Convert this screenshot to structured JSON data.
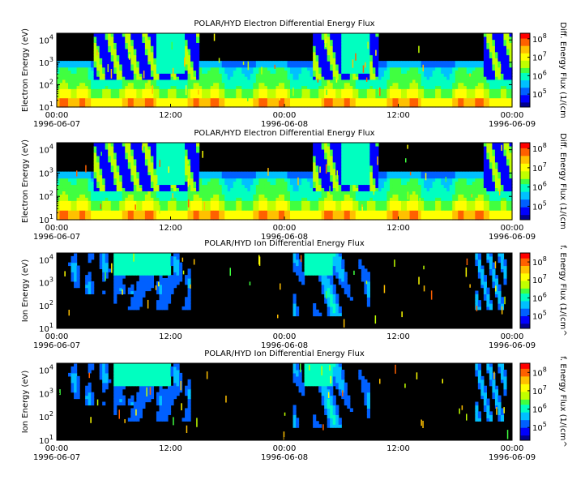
{
  "colors": {
    "background": "#000000",
    "colormap": [
      "#000090",
      "#0000ff",
      "#0060ff",
      "#00c0ff",
      "#00ffc0",
      "#40ff40",
      "#c0ff00",
      "#ffff00",
      "#ffc000",
      "#ff6000",
      "#ff0000"
    ]
  },
  "chart_data": [
    {
      "type": "heatmap",
      "title": "POLAR/HYD  Electron Differential Energy Flux",
      "ylabel": "Electron Energy (eV)",
      "colorbar_label": "Diff. Energy Flux (1/(cm",
      "y_scale": "log",
      "ylim": [
        10,
        20000
      ],
      "y_ticks": [
        {
          "base": "10",
          "exp": "1",
          "v": 1
        },
        {
          "base": "10",
          "exp": "2",
          "v": 2
        },
        {
          "base": "10",
          "exp": "3",
          "v": 3
        },
        {
          "base": "10",
          "exp": "4",
          "v": 4
        }
      ],
      "colorbar_ticks": [
        {
          "base": "10",
          "exp": "5",
          "v": 5
        },
        {
          "base": "10",
          "exp": "6",
          "v": 6
        },
        {
          "base": "10",
          "exp": "7",
          "v": 7
        },
        {
          "base": "10",
          "exp": "8",
          "v": 8
        }
      ],
      "colorbar_range": [
        4.3,
        8.3
      ],
      "x_ticks": [
        {
          "t": 0,
          "time": "00:00",
          "date": "1996-06-07"
        },
        {
          "t": 12,
          "time": "12:00",
          "date": ""
        },
        {
          "t": 24,
          "time": "00:00",
          "date": "1996-06-08"
        },
        {
          "t": 36,
          "time": "12:00",
          "date": ""
        },
        {
          "t": 48,
          "time": "00:00",
          "date": "1996-06-09"
        }
      ],
      "xlim": [
        0,
        48
      ],
      "species": "electron"
    },
    {
      "type": "heatmap",
      "title": "POLAR/HYD  Electron Differential Energy Flux",
      "ylabel": "Electron Energy (eV)",
      "colorbar_label": "Diff. Energy Flux (1/(cm",
      "y_scale": "log",
      "ylim": [
        10,
        20000
      ],
      "y_ticks": [
        {
          "base": "10",
          "exp": "1",
          "v": 1
        },
        {
          "base": "10",
          "exp": "2",
          "v": 2
        },
        {
          "base": "10",
          "exp": "3",
          "v": 3
        },
        {
          "base": "10",
          "exp": "4",
          "v": 4
        }
      ],
      "colorbar_ticks": [
        {
          "base": "10",
          "exp": "5",
          "v": 5
        },
        {
          "base": "10",
          "exp": "6",
          "v": 6
        },
        {
          "base": "10",
          "exp": "7",
          "v": 7
        },
        {
          "base": "10",
          "exp": "8",
          "v": 8
        }
      ],
      "colorbar_range": [
        4.3,
        8.3
      ],
      "x_ticks": [
        {
          "t": 0,
          "time": "00:00",
          "date": "1996-06-07"
        },
        {
          "t": 12,
          "time": "12:00",
          "date": ""
        },
        {
          "t": 24,
          "time": "00:00",
          "date": "1996-06-08"
        },
        {
          "t": 36,
          "time": "12:00",
          "date": ""
        },
        {
          "t": 48,
          "time": "00:00",
          "date": "1996-06-09"
        }
      ],
      "xlim": [
        0,
        48
      ],
      "species": "electron"
    },
    {
      "type": "heatmap",
      "title": "POLAR/HYD  Ion Differential Energy Flux",
      "ylabel": "Ion Energy (eV)",
      "colorbar_label": "f. Energy Flux (1/(cm^",
      "y_scale": "log",
      "ylim": [
        10,
        20000
      ],
      "y_ticks": [
        {
          "base": "10",
          "exp": "1",
          "v": 1
        },
        {
          "base": "10",
          "exp": "2",
          "v": 2
        },
        {
          "base": "10",
          "exp": "3",
          "v": 3
        },
        {
          "base": "10",
          "exp": "4",
          "v": 4
        }
      ],
      "colorbar_ticks": [
        {
          "base": "10",
          "exp": "5",
          "v": 5
        },
        {
          "base": "10",
          "exp": "6",
          "v": 6
        },
        {
          "base": "10",
          "exp": "7",
          "v": 7
        },
        {
          "base": "10",
          "exp": "8",
          "v": 8
        }
      ],
      "colorbar_range": [
        4.3,
        8.5
      ],
      "x_ticks": [
        {
          "t": 0,
          "time": "00:00",
          "date": "1996-06-07"
        },
        {
          "t": 12,
          "time": "12:00",
          "date": ""
        },
        {
          "t": 24,
          "time": "00:00",
          "date": "1996-06-08"
        },
        {
          "t": 36,
          "time": "12:00",
          "date": ""
        },
        {
          "t": 48,
          "time": "00:00",
          "date": "1996-06-09"
        }
      ],
      "xlim": [
        0,
        48
      ],
      "species": "ion"
    },
    {
      "type": "heatmap",
      "title": "POLAR/HYD  Ion Differential Energy Flux",
      "ylabel": "Ion Energy (eV)",
      "colorbar_label": "f. Energy Flux (1/(cm^",
      "y_scale": "log",
      "ylim": [
        10,
        20000
      ],
      "y_ticks": [
        {
          "base": "10",
          "exp": "1",
          "v": 1
        },
        {
          "base": "10",
          "exp": "2",
          "v": 2
        },
        {
          "base": "10",
          "exp": "3",
          "v": 3
        },
        {
          "base": "10",
          "exp": "4",
          "v": 4
        }
      ],
      "colorbar_ticks": [
        {
          "base": "10",
          "exp": "5",
          "v": 5
        },
        {
          "base": "10",
          "exp": "6",
          "v": 6
        },
        {
          "base": "10",
          "exp": "7",
          "v": 7
        },
        {
          "base": "10",
          "exp": "8",
          "v": 8
        }
      ],
      "colorbar_range": [
        4.3,
        8.5
      ],
      "x_ticks": [
        {
          "t": 0,
          "time": "00:00",
          "date": "1996-06-07"
        },
        {
          "t": 12,
          "time": "12:00",
          "date": ""
        },
        {
          "t": 24,
          "time": "00:00",
          "date": "1996-06-08"
        },
        {
          "t": 36,
          "time": "12:00",
          "date": ""
        },
        {
          "t": 48,
          "time": "00:00",
          "date": "1996-06-09"
        }
      ],
      "xlim": [
        0,
        48
      ],
      "species": "ion"
    }
  ]
}
